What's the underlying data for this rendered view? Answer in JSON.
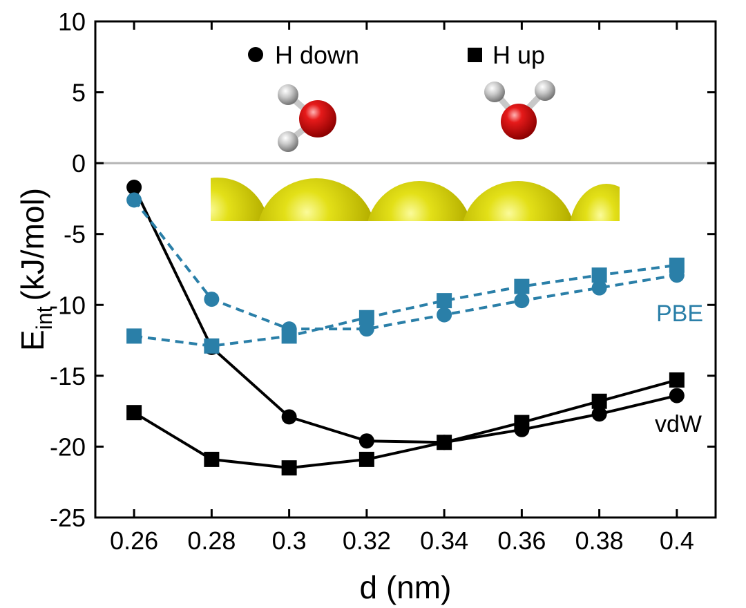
{
  "chart_data": {
    "type": "line",
    "title": "",
    "xlabel": "d (nm)",
    "ylabel": "E",
    "ylabel_subscript": "int",
    "ylabel_unit": "(kJ/mol)",
    "xlim": [
      0.25,
      0.41
    ],
    "ylim": [
      -25,
      10
    ],
    "x": [
      0.26,
      0.28,
      0.3,
      0.32,
      0.34,
      0.36,
      0.38,
      0.4
    ],
    "xtick_labels": [
      "0.26",
      "0.28",
      "0.3",
      "0.32",
      "0.34",
      "0.36",
      "0.38",
      "0.4"
    ],
    "ytick_values": [
      10,
      5,
      0,
      -5,
      -10,
      -15,
      -20,
      -25
    ],
    "ytick_labels": [
      "10",
      "5",
      "0",
      "-5",
      "-10",
      "-15",
      "-20",
      "-25"
    ],
    "zero_line": true,
    "series": [
      {
        "name": "vdW H down",
        "method": "vdW",
        "orientation": "H down",
        "marker": "circle",
        "style": "solid",
        "color": "#000000",
        "values": [
          -1.7,
          -13.0,
          -17.9,
          -19.6,
          -19.7,
          -18.8,
          -17.7,
          -16.4
        ]
      },
      {
        "name": "vdW H up",
        "method": "vdW",
        "orientation": "H up",
        "marker": "square",
        "style": "solid",
        "color": "#000000",
        "values": [
          -17.6,
          -20.9,
          -21.5,
          -20.9,
          -19.7,
          -18.3,
          -16.8,
          -15.3
        ]
      },
      {
        "name": "PBE H down",
        "method": "PBE",
        "orientation": "H down",
        "marker": "circle",
        "style": "dashed",
        "color": "#2a7fa8",
        "values": [
          -2.6,
          -9.6,
          -11.7,
          -11.7,
          -10.7,
          -9.7,
          -8.8,
          -7.9
        ]
      },
      {
        "name": "PBE H up",
        "method": "PBE",
        "orientation": "H up",
        "marker": "square",
        "style": "dashed",
        "color": "#2a7fa8",
        "values": [
          -12.2,
          -12.9,
          -12.2,
          -10.9,
          -9.7,
          -8.7,
          -7.9,
          -7.2
        ]
      }
    ],
    "legend": [
      {
        "label": "H down",
        "marker": "circle"
      },
      {
        "label": "H up",
        "marker": "square"
      }
    ],
    "series_labels": [
      {
        "text": "PBE",
        "color": "#2a7fa8"
      },
      {
        "text": "vdW",
        "color": "#000000"
      }
    ],
    "annotations": [
      "water molecule H down (inset)",
      "water molecule H up (inset)",
      "gold surface atoms (inset)"
    ]
  }
}
